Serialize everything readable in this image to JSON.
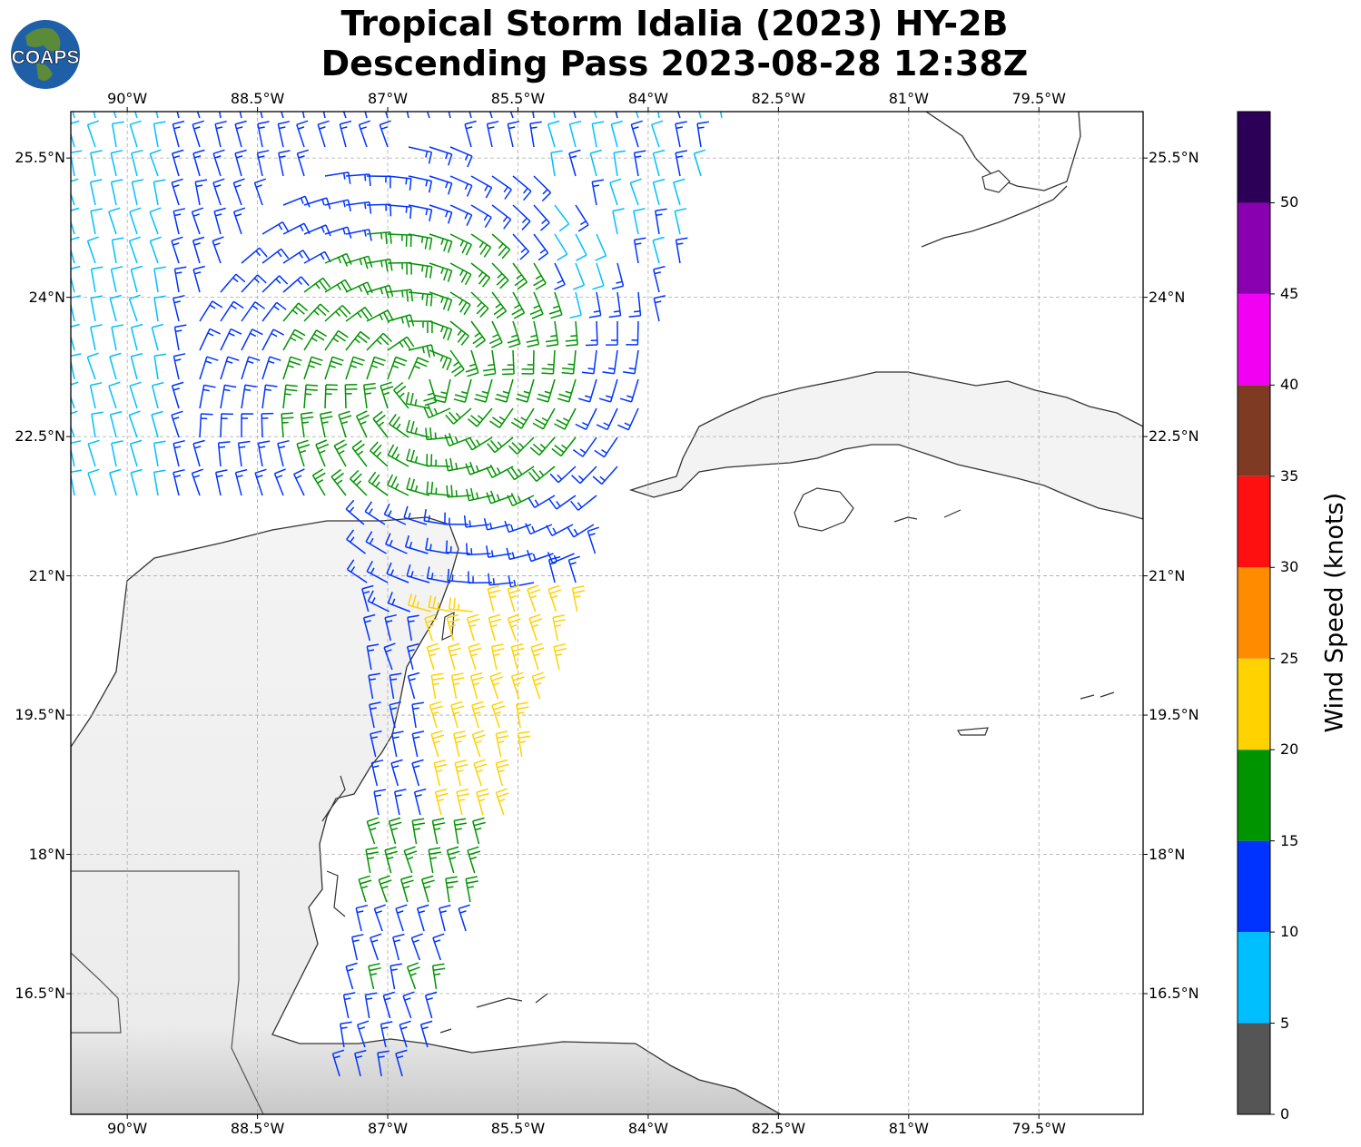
{
  "title": {
    "line1": "Tropical Storm Idalia (2023) HY-2B",
    "line2": "Descending Pass 2023-08-28 12:38Z"
  },
  "logo": {
    "text": "COAPS",
    "colors": {
      "ocean": "#1f5fa8",
      "land": "#5a8a3a"
    }
  },
  "map": {
    "lon_range": [
      -90.65,
      -78.3
    ],
    "lat_range": [
      15.2,
      26.0
    ],
    "x_ticks": [
      "90°W",
      "88.5°W",
      "87°W",
      "85.5°W",
      "84°W",
      "82.5°W",
      "81°W",
      "79.5°W"
    ],
    "y_ticks": [
      "25.5°N",
      "24°N",
      "22.5°N",
      "21°N",
      "19.5°N",
      "18°N",
      "16.5°N"
    ],
    "grid": "dashed",
    "colors": {
      "coast": "#333333",
      "grid": "#aaaaaa",
      "frame": "#000000"
    }
  },
  "colorbar": {
    "label": "Wind Speed (knots)",
    "tick_labels": [
      "0",
      "5",
      "10",
      "15",
      "20",
      "25",
      "30",
      "35",
      "40",
      "45",
      "50"
    ],
    "levels": [
      0,
      5,
      10,
      15,
      20,
      25,
      30,
      35,
      40,
      45,
      50,
      55
    ],
    "colors": [
      "#555555",
      "#00bfff",
      "#0033ff",
      "#009400",
      "#ffd200",
      "#ff8c00",
      "#ff1010",
      "#7f3a24",
      "#f200f2",
      "#8800b0",
      "#2d0058"
    ]
  },
  "wind_barbs": {
    "units": "knots",
    "colors_by_band": {
      "5-10": "#00bfff",
      "10-15": "#0033ff",
      "15-20": "#009400",
      "20-25": "#ffd200"
    }
  }
}
